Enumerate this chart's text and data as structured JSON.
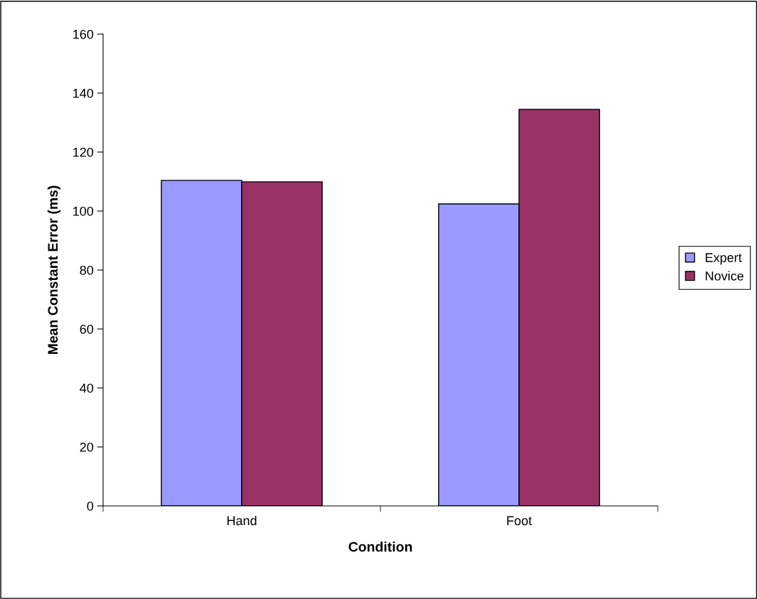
{
  "chart_data": {
    "type": "bar",
    "xlabel": "Condition",
    "ylabel": "Mean Constant Error (ms)",
    "categories": [
      "Hand",
      "Foot"
    ],
    "series": [
      {
        "name": "Expert",
        "color": "#9999ff",
        "values": [
          110.4,
          102.4
        ]
      },
      {
        "name": "Novice",
        "color": "#993366",
        "values": [
          109.9,
          134.5
        ]
      }
    ],
    "ylim": [
      0,
      160
    ],
    "yticks": [
      0,
      20,
      40,
      60,
      80,
      100,
      120,
      140,
      160
    ],
    "grid": false,
    "legend": "right"
  }
}
